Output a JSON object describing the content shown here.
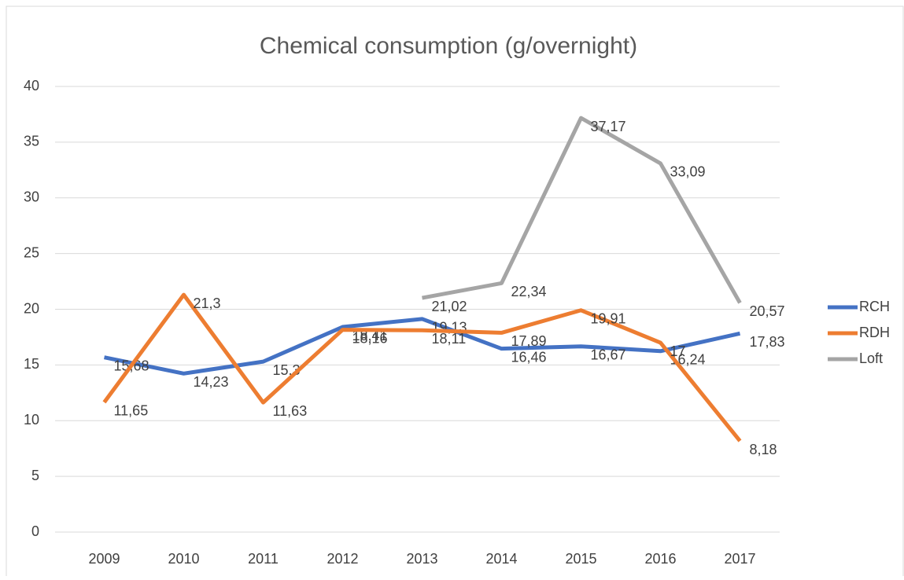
{
  "chart_data": {
    "type": "line",
    "title": "Chemical consumption (g/overnight)",
    "categories": [
      "2009",
      "2010",
      "2011",
      "2012",
      "2013",
      "2014",
      "2015",
      "2016",
      "2017"
    ],
    "series": [
      {
        "name": "RCH",
        "color": "#4472c4",
        "values": [
          15.68,
          14.23,
          15.3,
          18.41,
          19.13,
          16.46,
          16.67,
          16.24,
          17.83
        ],
        "value_labels": [
          "15,68",
          "14,23",
          "15,3",
          "18,41",
          "19,13",
          "16,46",
          "16,67",
          "16,24",
          "17,83"
        ]
      },
      {
        "name": "RDH",
        "color": "#ed7d31",
        "values": [
          11.65,
          21.3,
          11.63,
          18.16,
          18.11,
          17.89,
          19.91,
          17,
          8.18
        ],
        "value_labels": [
          "11,65",
          "21,3",
          "11,63",
          "18,16",
          "18,11",
          "17,89",
          "19,91",
          "17",
          "8,18"
        ]
      },
      {
        "name": "Loft",
        "color": "#a5a5a5",
        "values": [
          null,
          null,
          null,
          null,
          21.02,
          22.34,
          37.17,
          33.09,
          20.57
        ],
        "value_labels": [
          null,
          null,
          null,
          null,
          "21,02",
          "22,34",
          "37,17",
          "33,09",
          "20,57"
        ]
      }
    ],
    "ylim": [
      0,
      40
    ],
    "yticks": [
      0,
      5,
      10,
      15,
      20,
      25,
      30,
      35,
      40
    ],
    "grid": true,
    "legend": "right"
  }
}
